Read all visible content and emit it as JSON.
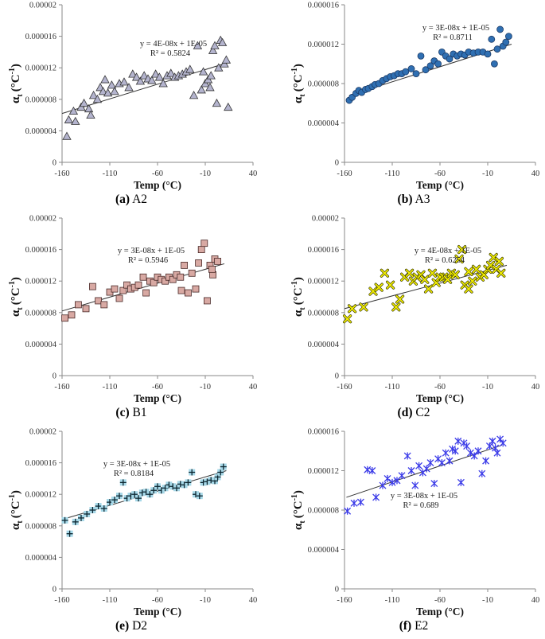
{
  "figure_title": "",
  "chart_data": [
    {
      "id": "A2",
      "panel_letter": "(a)",
      "panel_name": "A2",
      "type": "scatter",
      "marker": "triangle",
      "marker_fill": "#B4B4CE",
      "marker_stroke": "#333333",
      "xlabel": "Temp (°C)",
      "ylabel_main": "α",
      "ylabel_sub": "t",
      "ylabel_unit": "(°C",
      "ylabel_exp": "-1",
      "ylabel_close": ")",
      "xlim": [
        -160,
        40
      ],
      "ylim": [
        0,
        2e-05
      ],
      "xticks": [
        "-160",
        "-110",
        "-60",
        "-10",
        "40"
      ],
      "yticks": [
        "0",
        "0.000004",
        "0.000008",
        "0.000012",
        "0.000016",
        "0.00002"
      ],
      "equation": "y = 4E-08x + 1E-05",
      "r2": "R² = 0.5824",
      "trend": {
        "x0": -160,
        "y0": 6.2e-06,
        "x1": 15,
        "y1": 1.27e-05
      },
      "points": [
        [
          -155,
          3.3e-06
        ],
        [
          -153,
          5.4e-06
        ],
        [
          -148,
          6.5e-06
        ],
        [
          -146,
          5.2e-06
        ],
        [
          -140,
          7e-06
        ],
        [
          -137,
          7.5e-06
        ],
        [
          -132,
          6.8e-06
        ],
        [
          -130,
          6e-06
        ],
        [
          -127,
          8.5e-06
        ],
        [
          -123,
          8e-06
        ],
        [
          -120,
          9.5e-06
        ],
        [
          -117,
          9e-06
        ],
        [
          -115,
          1.05e-05
        ],
        [
          -112,
          8.8e-06
        ],
        [
          -108,
          9.8e-06
        ],
        [
          -105,
          9e-06
        ],
        [
          -100,
          1e-05
        ],
        [
          -95,
          1.02e-05
        ],
        [
          -90,
          9.5e-06
        ],
        [
          -86,
          1.12e-05
        ],
        [
          -82,
          1.08e-05
        ],
        [
          -78,
          1.03e-05
        ],
        [
          -74,
          1.1e-05
        ],
        [
          -70,
          1.06e-05
        ],
        [
          -66,
          1.04e-05
        ],
        [
          -62,
          1.12e-05
        ],
        [
          -58,
          1.08e-05
        ],
        [
          -54,
          1e-05
        ],
        [
          -50,
          1.1e-05
        ],
        [
          -46,
          1.13e-05
        ],
        [
          -42,
          1.08e-05
        ],
        [
          -38,
          1.1e-05
        ],
        [
          -34,
          1.12e-05
        ],
        [
          -30,
          1.15e-05
        ],
        [
          -26,
          1.18e-05
        ],
        [
          -22,
          8.5e-06
        ],
        [
          -18,
          1.48e-05
        ],
        [
          -14,
          9.2e-06
        ],
        [
          -10,
          1e-05
        ],
        [
          -7,
          1.05e-05
        ],
        [
          -4,
          1.1e-05
        ],
        [
          -2,
          1.42e-05
        ],
        [
          0,
          1.48e-05
        ],
        [
          2,
          7.5e-06
        ],
        [
          4,
          1.2e-05
        ],
        [
          6,
          1.55e-05
        ],
        [
          8,
          1.52e-05
        ],
        [
          10,
          1.25e-05
        ],
        [
          12,
          1.3e-05
        ],
        [
          14,
          7e-06
        ],
        [
          -5,
          9.5e-06
        ],
        [
          -12,
          1.15e-05
        ]
      ]
    },
    {
      "id": "A3",
      "panel_letter": "(b)",
      "panel_name": "A3",
      "type": "scatter",
      "marker": "circle",
      "marker_fill": "#2F6FB2",
      "marker_stroke": "#1B3A66",
      "xlabel": "Temp (°C)",
      "ylabel_main": "α",
      "ylabel_sub": "t",
      "ylabel_unit": "(°C",
      "ylabel_exp": "-1",
      "ylabel_close": ")",
      "xlim": [
        -160,
        40
      ],
      "ylim": [
        0,
        1.6e-05
      ],
      "xticks": [
        "-160",
        "-110",
        "-60",
        "-10",
        "40"
      ],
      "yticks": [
        "0",
        "0.000004",
        "0.000008",
        "0.000012",
        "0.000016"
      ],
      "equation": "y = 3E-08x + 1E-05",
      "r2": "R² = 0.8711",
      "trend": {
        "x0": -155,
        "y0": 6.8e-06,
        "x1": 15,
        "y1": 1.2e-05
      },
      "points": [
        [
          -155,
          6.3e-06
        ],
        [
          -152,
          6.6e-06
        ],
        [
          -148,
          7e-06
        ],
        [
          -145,
          7.3e-06
        ],
        [
          -142,
          7.1e-06
        ],
        [
          -138,
          7.4e-06
        ],
        [
          -135,
          7.5e-06
        ],
        [
          -131,
          7.7e-06
        ],
        [
          -128,
          7.9e-06
        ],
        [
          -124,
          8e-06
        ],
        [
          -120,
          8.3e-06
        ],
        [
          -116,
          8.5e-06
        ],
        [
          -112,
          8.7e-06
        ],
        [
          -108,
          8.8e-06
        ],
        [
          -104,
          9e-06
        ],
        [
          -100,
          9e-06
        ],
        [
          -96,
          9.2e-06
        ],
        [
          -90,
          9.5e-06
        ],
        [
          -85,
          9e-06
        ],
        [
          -80,
          1.08e-05
        ],
        [
          -75,
          9.4e-06
        ],
        [
          -70,
          9.8e-06
        ],
        [
          -66,
          1.03e-05
        ],
        [
          -62,
          1e-05
        ],
        [
          -58,
          1.12e-05
        ],
        [
          -54,
          1.08e-05
        ],
        [
          -50,
          1.05e-05
        ],
        [
          -46,
          1.1e-05
        ],
        [
          -42,
          1.08e-05
        ],
        [
          -38,
          1.1e-05
        ],
        [
          -34,
          1.09e-05
        ],
        [
          -30,
          1.12e-05
        ],
        [
          -25,
          1.11e-05
        ],
        [
          -20,
          1.12e-05
        ],
        [
          -15,
          1.12e-05
        ],
        [
          -10,
          1.1e-05
        ],
        [
          -6,
          1.25e-05
        ],
        [
          -3,
          1e-05
        ],
        [
          0,
          1.15e-05
        ],
        [
          3,
          1.35e-05
        ],
        [
          6,
          1.18e-05
        ],
        [
          9,
          1.22e-05
        ],
        [
          12,
          1.28e-05
        ]
      ]
    },
    {
      "id": "B1",
      "panel_letter": "(c)",
      "panel_name": "B1",
      "type": "scatter",
      "marker": "square",
      "marker_fill": "#D8A9A3",
      "marker_stroke": "#4A2A28",
      "xlabel": "Temp (°C)",
      "ylabel_main": "α",
      "ylabel_sub": "t",
      "ylabel_unit": "(°C",
      "ylabel_exp": "-1",
      "ylabel_close": ")",
      "xlim": [
        -160,
        40
      ],
      "ylim": [
        0,
        2e-05
      ],
      "xticks": [
        "-160",
        "-110",
        "-60",
        "-10",
        "40"
      ],
      "yticks": [
        "0",
        "0.000004",
        "0.000008",
        "0.000012",
        "0.000016",
        "0.00002"
      ],
      "equation": "y = 3E-08x + 1E-05",
      "r2": "R² = 0.5946",
      "trend": {
        "x0": -160,
        "y0": 8.2e-06,
        "x1": 10,
        "y1": 1.42e-05
      },
      "points": [
        [
          -157,
          7.3e-06
        ],
        [
          -150,
          7.7e-06
        ],
        [
          -143,
          9e-06
        ],
        [
          -135,
          8.5e-06
        ],
        [
          -128,
          1.13e-05
        ],
        [
          -122,
          9.5e-06
        ],
        [
          -116,
          9e-06
        ],
        [
          -110,
          1.06e-05
        ],
        [
          -105,
          1.1e-05
        ],
        [
          -100,
          9.8e-06
        ],
        [
          -96,
          1.08e-05
        ],
        [
          -92,
          1.15e-05
        ],
        [
          -88,
          1.1e-05
        ],
        [
          -84,
          1.12e-05
        ],
        [
          -80,
          1.15e-05
        ],
        [
          -75,
          1.25e-05
        ],
        [
          -72,
          1.05e-05
        ],
        [
          -68,
          1.2e-05
        ],
        [
          -64,
          1.18e-05
        ],
        [
          -60,
          1.25e-05
        ],
        [
          -56,
          1.22e-05
        ],
        [
          -52,
          1.2e-05
        ],
        [
          -48,
          1.25e-05
        ],
        [
          -44,
          1.22e-05
        ],
        [
          -40,
          1.28e-05
        ],
        [
          -36,
          1.25e-05
        ],
        [
          -32,
          1.4e-05
        ],
        [
          -28,
          1.05e-05
        ],
        [
          -24,
          1.3e-05
        ],
        [
          -20,
          1.1e-05
        ],
        [
          -17,
          1.43e-05
        ],
        [
          -14,
          1.6e-05
        ],
        [
          -11,
          1.68e-05
        ],
        [
          -8,
          9.5e-06
        ],
        [
          -5,
          1.4e-05
        ],
        [
          -2,
          1.28e-05
        ],
        [
          0,
          1.48e-05
        ],
        [
          3,
          1.45e-05
        ],
        [
          -35,
          1.08e-05
        ],
        [
          -3,
          1.35e-05
        ]
      ]
    },
    {
      "id": "C2",
      "panel_letter": "(d)",
      "panel_name": "C2",
      "type": "scatter",
      "marker": "x",
      "marker_fill": "#F2EE00",
      "marker_stroke": "#3A3A00",
      "xlabel": "Temp (°C)",
      "ylabel_main": "α",
      "ylabel_sub": "t",
      "ylabel_unit": "(°C",
      "ylabel_exp": "-1",
      "ylabel_close": ")",
      "xlim": [
        -160,
        40
      ],
      "ylim": [
        0,
        2e-05
      ],
      "xticks": [
        "-160",
        "-110",
        "-60",
        "-10",
        "40"
      ],
      "yticks": [
        "0",
        "0.000004",
        "0.000008",
        "0.000012",
        "0.000016",
        "0.00002"
      ],
      "equation": "y = 4E-08x + 1E-05",
      "r2": "R² = 0.6254",
      "trend": {
        "x0": -160,
        "y0": 8.5e-06,
        "x1": 10,
        "y1": 1.4e-05
      },
      "points": [
        [
          -157,
          7.2e-06
        ],
        [
          -152,
          8.5e-06
        ],
        [
          -140,
          8.7e-06
        ],
        [
          -130,
          1.07e-05
        ],
        [
          -124,
          1.12e-05
        ],
        [
          -118,
          1.3e-05
        ],
        [
          -112,
          1.15e-05
        ],
        [
          -106,
          8.7e-06
        ],
        [
          -102,
          9.7e-06
        ],
        [
          -97,
          1.25e-05
        ],
        [
          -92,
          1.3e-05
        ],
        [
          -88,
          1.2e-05
        ],
        [
          -84,
          1.25e-05
        ],
        [
          -80,
          1.28e-05
        ],
        [
          -76,
          1.22e-05
        ],
        [
          -72,
          1.1e-05
        ],
        [
          -68,
          1.3e-05
        ],
        [
          -64,
          1.18e-05
        ],
        [
          -60,
          1.25e-05
        ],
        [
          -56,
          1.25e-05
        ],
        [
          -52,
          1.22e-05
        ],
        [
          -48,
          1.3e-05
        ],
        [
          -44,
          1.28e-05
        ],
        [
          -40,
          1.48e-05
        ],
        [
          -37,
          1.6e-05
        ],
        [
          -34,
          1.15e-05
        ],
        [
          -30,
          1.32e-05
        ],
        [
          -26,
          1.2e-05
        ],
        [
          -22,
          1.35e-05
        ],
        [
          -18,
          1.25e-05
        ],
        [
          -14,
          1.28e-05
        ],
        [
          -10,
          1.35e-05
        ],
        [
          -7,
          1.4e-05
        ],
        [
          -4,
          1.5e-05
        ],
        [
          -1,
          1.35e-05
        ],
        [
          2,
          1.45e-05
        ],
        [
          4,
          1.3e-05
        ],
        [
          -30,
          1.1e-05
        ]
      ]
    },
    {
      "id": "D2",
      "panel_letter": "(e)",
      "panel_name": "D2",
      "type": "scatter",
      "marker": "plus-square",
      "marker_fill": "#A6D8E8",
      "marker_stroke": "#0D2630",
      "xlabel": "Temp (°C)",
      "ylabel_main": "α",
      "ylabel_sub": "t",
      "ylabel_unit": "(°C",
      "ylabel_exp": "-1",
      "ylabel_close": ")",
      "xlim": [
        -160,
        40
      ],
      "ylim": [
        0,
        2e-05
      ],
      "xticks": [
        "-160",
        "-110",
        "-60",
        "-10",
        "40"
      ],
      "yticks": [
        "0",
        "0.000004",
        "0.000008",
        "0.000012",
        "0.000016",
        "0.00002"
      ],
      "equation": "y = 3E-08x + 1E-05",
      "r2": "R² = 0.8184",
      "trend": {
        "x0": -160,
        "y0": 8.8e-06,
        "x1": 12,
        "y1": 1.5e-05
      },
      "points": [
        [
          -157,
          8.7e-06
        ],
        [
          -152,
          7e-06
        ],
        [
          -146,
          8.5e-06
        ],
        [
          -140,
          9e-06
        ],
        [
          -134,
          9.5e-06
        ],
        [
          -128,
          1e-05
        ],
        [
          -122,
          1.05e-05
        ],
        [
          -116,
          1.02e-05
        ],
        [
          -110,
          1.1e-05
        ],
        [
          -105,
          1.13e-05
        ],
        [
          -100,
          1.18e-05
        ],
        [
          -96,
          1.35e-05
        ],
        [
          -92,
          1.15e-05
        ],
        [
          -88,
          1.18e-05
        ],
        [
          -84,
          1.2e-05
        ],
        [
          -80,
          1.15e-05
        ],
        [
          -76,
          1.22e-05
        ],
        [
          -72,
          1.23e-05
        ],
        [
          -68,
          1.2e-05
        ],
        [
          -64,
          1.25e-05
        ],
        [
          -60,
          1.3e-05
        ],
        [
          -56,
          1.25e-05
        ],
        [
          -52,
          1.28e-05
        ],
        [
          -48,
          1.32e-05
        ],
        [
          -44,
          1.3e-05
        ],
        [
          -40,
          1.28e-05
        ],
        [
          -36,
          1.33e-05
        ],
        [
          -32,
          1.32e-05
        ],
        [
          -28,
          1.35e-05
        ],
        [
          -24,
          1.48e-05
        ],
        [
          -20,
          1.2e-05
        ],
        [
          -16,
          1.18e-05
        ],
        [
          -12,
          1.35e-05
        ],
        [
          -8,
          1.36e-05
        ],
        [
          -4,
          1.38e-05
        ],
        [
          0,
          1.37e-05
        ],
        [
          3,
          1.42e-05
        ],
        [
          6,
          1.48e-05
        ],
        [
          9,
          1.55e-05
        ]
      ]
    },
    {
      "id": "E2",
      "panel_letter": "(f)",
      "panel_name": "E2",
      "type": "scatter",
      "marker": "star",
      "marker_fill": "#3B3BE8",
      "marker_stroke": "#1E1EC8",
      "xlabel": "Temp (°C)",
      "ylabel_main": "α",
      "ylabel_sub": "t",
      "ylabel_unit": "(°C",
      "ylabel_exp": "-1",
      "ylabel_close": ")",
      "xlim": [
        -160,
        40
      ],
      "ylim": [
        0,
        1.6e-05
      ],
      "xticks": [
        "-160",
        "-110",
        "-60",
        "-10",
        "40"
      ],
      "yticks": [
        "0",
        "0.000004",
        "0.000008",
        "0.000012",
        "0.000016"
      ],
      "equation": "y = 3E-08x + 1E-05",
      "r2": "R² = 0.689",
      "trend": {
        "x0": -158,
        "y0": 9.3e-06,
        "x1": 5,
        "y1": 1.46e-05
      },
      "points": [
        [
          -157,
          7.9e-06
        ],
        [
          -150,
          8.7e-06
        ],
        [
          -143,
          8.8e-06
        ],
        [
          -136,
          1.21e-05
        ],
        [
          -131,
          1.2e-05
        ],
        [
          -127,
          9.3e-06
        ],
        [
          -120,
          1.05e-05
        ],
        [
          -115,
          1.12e-05
        ],
        [
          -110,
          1.08e-05
        ],
        [
          -105,
          1.1e-05
        ],
        [
          -100,
          1.15e-05
        ],
        [
          -94,
          1.35e-05
        ],
        [
          -90,
          1.2e-05
        ],
        [
          -86,
          1.05e-05
        ],
        [
          -82,
          1.25e-05
        ],
        [
          -78,
          1.18e-05
        ],
        [
          -74,
          1.22e-05
        ],
        [
          -70,
          1.28e-05
        ],
        [
          -66,
          1.07e-05
        ],
        [
          -62,
          1.32e-05
        ],
        [
          -58,
          1.28e-05
        ],
        [
          -54,
          1.38e-05
        ],
        [
          -50,
          1.3e-05
        ],
        [
          -47,
          1.42e-05
        ],
        [
          -44,
          1.4e-05
        ],
        [
          -41,
          1.5e-05
        ],
        [
          -38,
          1.08e-05
        ],
        [
          -35,
          1.48e-05
        ],
        [
          -32,
          1.45e-05
        ],
        [
          -28,
          1.38e-05
        ],
        [
          -24,
          1.35e-05
        ],
        [
          -20,
          1.4e-05
        ],
        [
          -16,
          1.17e-05
        ],
        [
          -12,
          1.3e-05
        ],
        [
          -8,
          1.45e-05
        ],
        [
          -5,
          1.5e-05
        ],
        [
          -2,
          1.43e-05
        ],
        [
          0,
          1.38e-05
        ],
        [
          3,
          1.52e-05
        ],
        [
          6,
          1.48e-05
        ]
      ]
    }
  ]
}
